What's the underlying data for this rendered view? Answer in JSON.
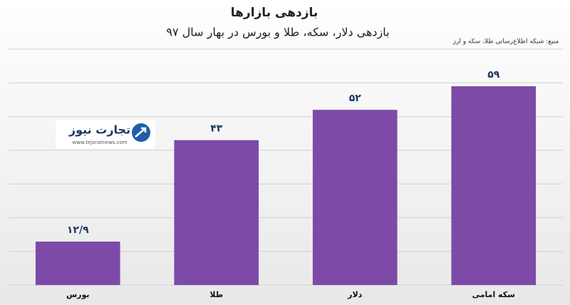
{
  "chart_data": {
    "type": "bar",
    "title": "بازدهی بازارها",
    "subtitle": "بازدهی دلار، سکه، طلا و بورس در بهار سال ۹۷",
    "source": "منبع: شبکه اطلاع‌رسانی طلا، سکه و ارز",
    "logo": {
      "name": "تجارت نیوز",
      "url": "www.tejoratnews.com"
    },
    "categories": [
      "بورس",
      "طلا",
      "دلار",
      "سکه امامی"
    ],
    "values": [
      12.9,
      43,
      52,
      59
    ],
    "value_labels": [
      "۱۲/۹",
      "۴۳",
      "۵۲",
      "۵۹"
    ],
    "color": "#7d4aa8",
    "ylim": [
      0,
      70
    ],
    "yticks": [
      0,
      10,
      20,
      30,
      40,
      50,
      60,
      70
    ],
    "grid": true
  }
}
